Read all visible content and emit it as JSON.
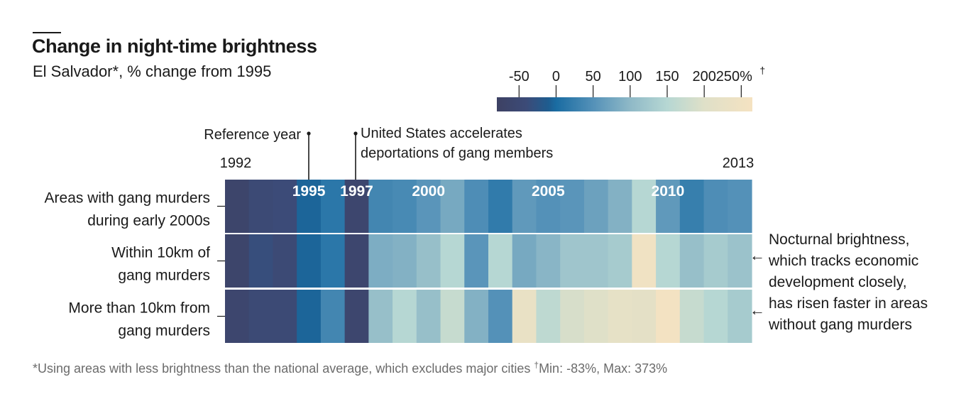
{
  "header": {
    "title": "Change in night-time brightness",
    "subtitle": "El Salvador*, % change from 1995"
  },
  "footnote": {
    "main": "*Using areas with less brightness than the national average, which excludes major cities ",
    "dagger": "†",
    "minmax": "Min: -83%, Max: 373%"
  },
  "annotations": {
    "reference_year": "Reference year",
    "deportations_line1": "United States accelerates",
    "deportations_line2": "deportations of gang members",
    "start_year": "1992",
    "end_year": "2013",
    "side_note": [
      "Nocturnal brightness,",
      "which tracks economic",
      "development closely,",
      "has risen faster in areas",
      "without gang murders"
    ],
    "arrow": "←"
  },
  "chart_data": {
    "type": "heatmap",
    "title": "Change in night-time brightness",
    "subtitle": "El Salvador*, % change from 1995",
    "years": [
      1992,
      1993,
      1994,
      1995,
      1996,
      1997,
      1998,
      1999,
      2000,
      2001,
      2002,
      2003,
      2004,
      2005,
      2006,
      2007,
      2008,
      2009,
      2010,
      2011,
      2012,
      2013
    ],
    "year_labels_on_cells": [
      "1995",
      "1997",
      "2000",
      "2005",
      "2010"
    ],
    "color_scale": {
      "ticks": [
        "-50",
        "0",
        "50",
        "100",
        "150",
        "200",
        "250%"
      ],
      "tick_values": [
        -50,
        0,
        50,
        100,
        150,
        200,
        250
      ],
      "dagger": "†",
      "domain": [
        -80,
        265
      ],
      "stops": [
        {
          "value": -80,
          "color": "#3d4163"
        },
        {
          "value": -40,
          "color": "#3c4b78"
        },
        {
          "value": -10,
          "color": "#1e5d90"
        },
        {
          "value": 0,
          "color": "#1a6ca2"
        },
        {
          "value": 50,
          "color": "#5491b8"
        },
        {
          "value": 100,
          "color": "#8fb9c7"
        },
        {
          "value": 150,
          "color": "#b6d7d3"
        },
        {
          "value": 200,
          "color": "#dfe0c8"
        },
        {
          "value": 265,
          "color": "#f5e2c1"
        }
      ]
    },
    "rows": [
      {
        "label": [
          "Areas with gang murders",
          "during early 2000s"
        ],
        "values": [
          -65,
          -45,
          -40,
          -5,
          15,
          -60,
          35,
          40,
          55,
          80,
          45,
          20,
          60,
          50,
          55,
          70,
          90,
          150,
          60,
          25,
          45,
          50
        ]
      },
      {
        "label": [
          "Within 10km of",
          "gang murders"
        ],
        "values": [
          -65,
          -35,
          -45,
          -5,
          15,
          -60,
          85,
          90,
          110,
          150,
          55,
          150,
          80,
          95,
          120,
          120,
          130,
          250,
          150,
          110,
          130,
          115
        ]
      },
      {
        "label": [
          "More than 10km from",
          "gang murders"
        ],
        "values": [
          -60,
          -45,
          -45,
          -5,
          35,
          -60,
          110,
          150,
          110,
          170,
          90,
          50,
          230,
          160,
          190,
          200,
          220,
          215,
          260,
          170,
          150,
          130
        ]
      }
    ]
  }
}
